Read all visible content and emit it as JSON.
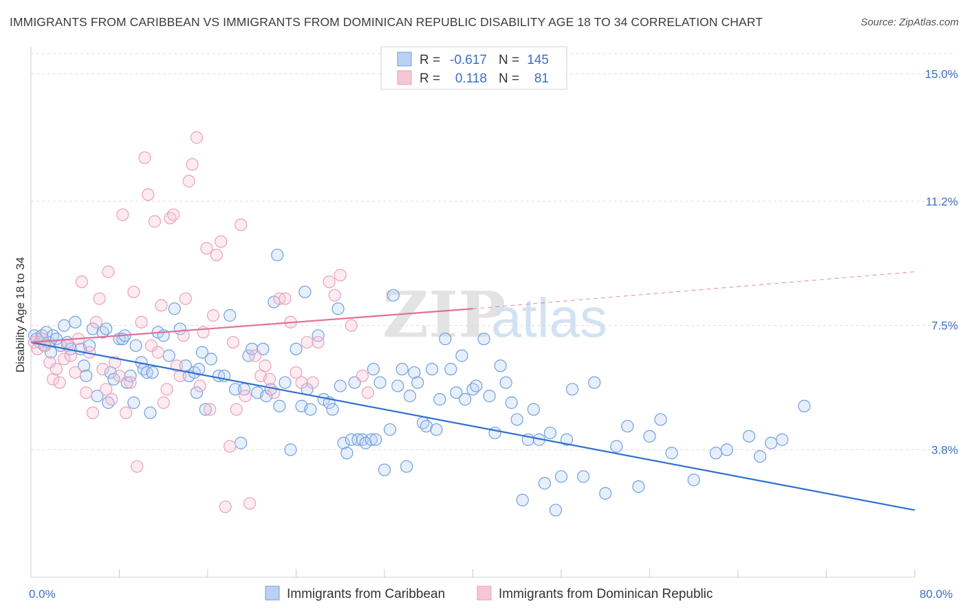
{
  "title": "IMMIGRANTS FROM CARIBBEAN VS IMMIGRANTS FROM DOMINICAN REPUBLIC DISABILITY AGE 18 TO 34 CORRELATION CHART",
  "source": "Source: ZipAtlas.com",
  "watermark": {
    "zip": "ZIP",
    "atlas": "atlas"
  },
  "colors": {
    "blue": "#6f9fe0",
    "blue_fill": "#b9d2f3",
    "blue_line": "#2e6fd0",
    "pink": "#e8a0b8",
    "pink_fill": "#f7c6d5",
    "pink_line": "#e07096",
    "tick_blue": "#3a6fc6"
  },
  "legend": {
    "rows": [
      {
        "r_label": "R =",
        "r_value": "-0.617",
        "n_label": "N =",
        "n_value": "145"
      },
      {
        "r_label": "R =",
        "r_value": "0.118",
        "n_label": "N =",
        "n_value": "81"
      }
    ]
  },
  "bottom_legend": [
    "Immigrants from Caribbean",
    "Immigrants from Dominican Republic"
  ],
  "chart_data": {
    "type": "scatter",
    "xlabel": "",
    "ylabel": "Disability Age 18 to 34",
    "xlim": [
      0,
      80
    ],
    "ylim": [
      0,
      15.6
    ],
    "x_tick_labels": [
      "0.0%",
      "80.0%"
    ],
    "y_ticks": [
      3.8,
      7.5,
      11.2,
      15.0
    ],
    "y_tick_labels": [
      "3.8%",
      "7.5%",
      "11.2%",
      "15.0%"
    ],
    "grid": "horizontal dashed",
    "legend_position": "top-center",
    "series": [
      {
        "name": "Immigrants from Caribbean",
        "trend": {
          "x": [
            0,
            80
          ],
          "y": [
            7.0,
            2.0
          ],
          "style": "solid"
        },
        "points": [
          [
            0.3,
            7.2
          ],
          [
            0.5,
            7.1
          ],
          [
            0.8,
            7.0
          ],
          [
            1.0,
            7.2
          ],
          [
            1.2,
            6.9
          ],
          [
            1.4,
            7.3
          ],
          [
            1.6,
            7.0
          ],
          [
            1.8,
            6.7
          ],
          [
            2.0,
            7.2
          ],
          [
            2.3,
            7.1
          ],
          [
            2.7,
            6.9
          ],
          [
            3.0,
            7.5
          ],
          [
            3.3,
            7.0
          ],
          [
            3.6,
            6.8
          ],
          [
            4.0,
            7.6
          ],
          [
            4.5,
            6.8
          ],
          [
            4.8,
            6.3
          ],
          [
            5.0,
            6.0
          ],
          [
            5.3,
            6.9
          ],
          [
            5.6,
            7.4
          ],
          [
            6.0,
            5.4
          ],
          [
            6.5,
            7.3
          ],
          [
            6.8,
            7.4
          ],
          [
            7.0,
            5.2
          ],
          [
            7.2,
            6.1
          ],
          [
            7.5,
            5.9
          ],
          [
            8.0,
            7.1
          ],
          [
            8.3,
            7.1
          ],
          [
            8.5,
            7.2
          ],
          [
            8.7,
            5.8
          ],
          [
            9.0,
            6.0
          ],
          [
            9.3,
            5.2
          ],
          [
            9.5,
            6.9
          ],
          [
            10.0,
            6.4
          ],
          [
            10.2,
            6.2
          ],
          [
            10.5,
            6.1
          ],
          [
            10.8,
            4.9
          ],
          [
            11.0,
            6.1
          ],
          [
            11.5,
            7.3
          ],
          [
            12.0,
            7.2
          ],
          [
            12.5,
            6.6
          ],
          [
            13.0,
            8.0
          ],
          [
            13.5,
            7.4
          ],
          [
            14.0,
            6.3
          ],
          [
            14.3,
            6.0
          ],
          [
            14.8,
            6.1
          ],
          [
            15.0,
            5.5
          ],
          [
            15.2,
            6.2
          ],
          [
            15.5,
            6.7
          ],
          [
            15.8,
            5.0
          ],
          [
            16.3,
            6.5
          ],
          [
            17.0,
            6.0
          ],
          [
            17.5,
            6.0
          ],
          [
            18.0,
            7.8
          ],
          [
            18.5,
            5.6
          ],
          [
            19.0,
            4.0
          ],
          [
            19.3,
            5.6
          ],
          [
            19.7,
            6.6
          ],
          [
            20.0,
            6.8
          ],
          [
            20.5,
            5.5
          ],
          [
            21.0,
            6.8
          ],
          [
            21.3,
            5.4
          ],
          [
            21.7,
            5.6
          ],
          [
            22.0,
            8.2
          ],
          [
            22.3,
            9.6
          ],
          [
            22.5,
            5.1
          ],
          [
            23.0,
            5.8
          ],
          [
            23.5,
            3.8
          ],
          [
            24.0,
            6.8
          ],
          [
            24.5,
            5.1
          ],
          [
            24.8,
            8.5
          ],
          [
            25.0,
            5.6
          ],
          [
            25.3,
            5.0
          ],
          [
            26.0,
            7.2
          ],
          [
            26.5,
            5.3
          ],
          [
            27.0,
            5.2
          ],
          [
            27.3,
            5.0
          ],
          [
            27.8,
            8.0
          ],
          [
            28.0,
            5.7
          ],
          [
            28.3,
            4.0
          ],
          [
            28.6,
            3.7
          ],
          [
            29.0,
            4.1
          ],
          [
            29.3,
            5.8
          ],
          [
            29.6,
            4.1
          ],
          [
            30.0,
            4.1
          ],
          [
            30.3,
            4.0
          ],
          [
            30.8,
            4.1
          ],
          [
            31.0,
            6.2
          ],
          [
            31.2,
            4.1
          ],
          [
            31.6,
            5.8
          ],
          [
            32.0,
            3.2
          ],
          [
            32.5,
            4.4
          ],
          [
            32.8,
            8.4
          ],
          [
            33.2,
            5.7
          ],
          [
            33.6,
            6.2
          ],
          [
            34.0,
            3.3
          ],
          [
            34.3,
            5.4
          ],
          [
            34.7,
            6.1
          ],
          [
            35.0,
            5.8
          ],
          [
            35.5,
            4.6
          ],
          [
            35.8,
            4.5
          ],
          [
            36.3,
            6.2
          ],
          [
            36.7,
            4.4
          ],
          [
            37.0,
            5.3
          ],
          [
            37.5,
            7.1
          ],
          [
            38.0,
            6.2
          ],
          [
            38.5,
            5.5
          ],
          [
            39.0,
            6.6
          ],
          [
            39.3,
            5.3
          ],
          [
            40.0,
            5.6
          ],
          [
            40.3,
            5.7
          ],
          [
            41.0,
            7.1
          ],
          [
            41.5,
            5.4
          ],
          [
            42.0,
            4.3
          ],
          [
            42.5,
            6.3
          ],
          [
            43.0,
            5.8
          ],
          [
            43.5,
            5.2
          ],
          [
            44.0,
            4.7
          ],
          [
            44.5,
            2.3
          ],
          [
            45.0,
            4.1
          ],
          [
            45.5,
            5.0
          ],
          [
            46.0,
            4.1
          ],
          [
            46.5,
            2.8
          ],
          [
            47.0,
            4.3
          ],
          [
            47.5,
            2.0
          ],
          [
            48.0,
            3.0
          ],
          [
            48.5,
            4.1
          ],
          [
            49.0,
            5.6
          ],
          [
            50.0,
            3.0
          ],
          [
            51.0,
            5.8
          ],
          [
            52.0,
            2.5
          ],
          [
            53.0,
            3.9
          ],
          [
            54.0,
            4.5
          ],
          [
            55.0,
            2.7
          ],
          [
            56.0,
            4.2
          ],
          [
            57.0,
            4.7
          ],
          [
            58.0,
            3.7
          ],
          [
            60.0,
            2.9
          ],
          [
            62.0,
            3.7
          ],
          [
            63.0,
            3.8
          ],
          [
            65.0,
            4.2
          ],
          [
            66.0,
            3.6
          ],
          [
            67.0,
            4.0
          ],
          [
            68.0,
            4.1
          ],
          [
            70.0,
            5.1
          ]
        ]
      },
      {
        "name": "Immigrants from Dominican Republic",
        "trend": {
          "x": [
            0,
            40,
            80
          ],
          "y": [
            7.0,
            8.0,
            9.1
          ],
          "style": "solid then dashed"
        },
        "points": [
          [
            0.3,
            7.0
          ],
          [
            0.6,
            6.8
          ],
          [
            1.0,
            7.1
          ],
          [
            1.3,
            6.9
          ],
          [
            1.7,
            6.4
          ],
          [
            2.0,
            5.9
          ],
          [
            2.3,
            6.2
          ],
          [
            2.6,
            5.8
          ],
          [
            3.0,
            6.5
          ],
          [
            3.3,
            6.9
          ],
          [
            3.6,
            6.6
          ],
          [
            4.0,
            6.1
          ],
          [
            4.3,
            7.1
          ],
          [
            4.6,
            8.8
          ],
          [
            5.0,
            5.5
          ],
          [
            5.3,
            6.7
          ],
          [
            5.6,
            4.9
          ],
          [
            5.9,
            7.6
          ],
          [
            6.2,
            8.3
          ],
          [
            6.5,
            6.2
          ],
          [
            6.8,
            5.6
          ],
          [
            7.0,
            9.1
          ],
          [
            7.3,
            5.3
          ],
          [
            7.6,
            6.4
          ],
          [
            8.0,
            6.0
          ],
          [
            8.3,
            10.8
          ],
          [
            8.6,
            4.9
          ],
          [
            9.0,
            5.8
          ],
          [
            9.3,
            8.5
          ],
          [
            9.6,
            3.3
          ],
          [
            10.0,
            7.6
          ],
          [
            10.3,
            12.5
          ],
          [
            10.6,
            11.4
          ],
          [
            10.9,
            6.9
          ],
          [
            11.2,
            10.6
          ],
          [
            11.5,
            6.7
          ],
          [
            11.8,
            8.1
          ],
          [
            12.0,
            5.2
          ],
          [
            12.3,
            5.6
          ],
          [
            12.6,
            10.7
          ],
          [
            12.9,
            10.8
          ],
          [
            13.2,
            6.3
          ],
          [
            13.5,
            6.0
          ],
          [
            13.8,
            7.2
          ],
          [
            14.0,
            8.3
          ],
          [
            14.3,
            11.8
          ],
          [
            14.6,
            12.3
          ],
          [
            15.0,
            13.1
          ],
          [
            15.3,
            5.7
          ],
          [
            15.6,
            7.3
          ],
          [
            15.9,
            9.8
          ],
          [
            16.2,
            5.0
          ],
          [
            16.5,
            7.8
          ],
          [
            16.8,
            9.6
          ],
          [
            17.2,
            10.0
          ],
          [
            17.6,
            2.1
          ],
          [
            18.0,
            3.9
          ],
          [
            18.3,
            7.0
          ],
          [
            18.6,
            5.0
          ],
          [
            19.0,
            10.5
          ],
          [
            19.4,
            5.4
          ],
          [
            19.8,
            2.2
          ],
          [
            20.3,
            6.6
          ],
          [
            20.8,
            6.0
          ],
          [
            21.2,
            6.3
          ],
          [
            21.6,
            5.9
          ],
          [
            22.0,
            5.5
          ],
          [
            22.5,
            8.3
          ],
          [
            23.0,
            8.3
          ],
          [
            23.5,
            7.6
          ],
          [
            24.0,
            6.1
          ],
          [
            24.5,
            5.8
          ],
          [
            25.0,
            7.0
          ],
          [
            25.5,
            5.8
          ],
          [
            26.0,
            7.0
          ],
          [
            27.0,
            8.8
          ],
          [
            27.5,
            8.4
          ],
          [
            28.0,
            9.0
          ],
          [
            29.0,
            7.5
          ],
          [
            30.0,
            6.0
          ],
          [
            30.5,
            5.5
          ]
        ]
      }
    ]
  }
}
